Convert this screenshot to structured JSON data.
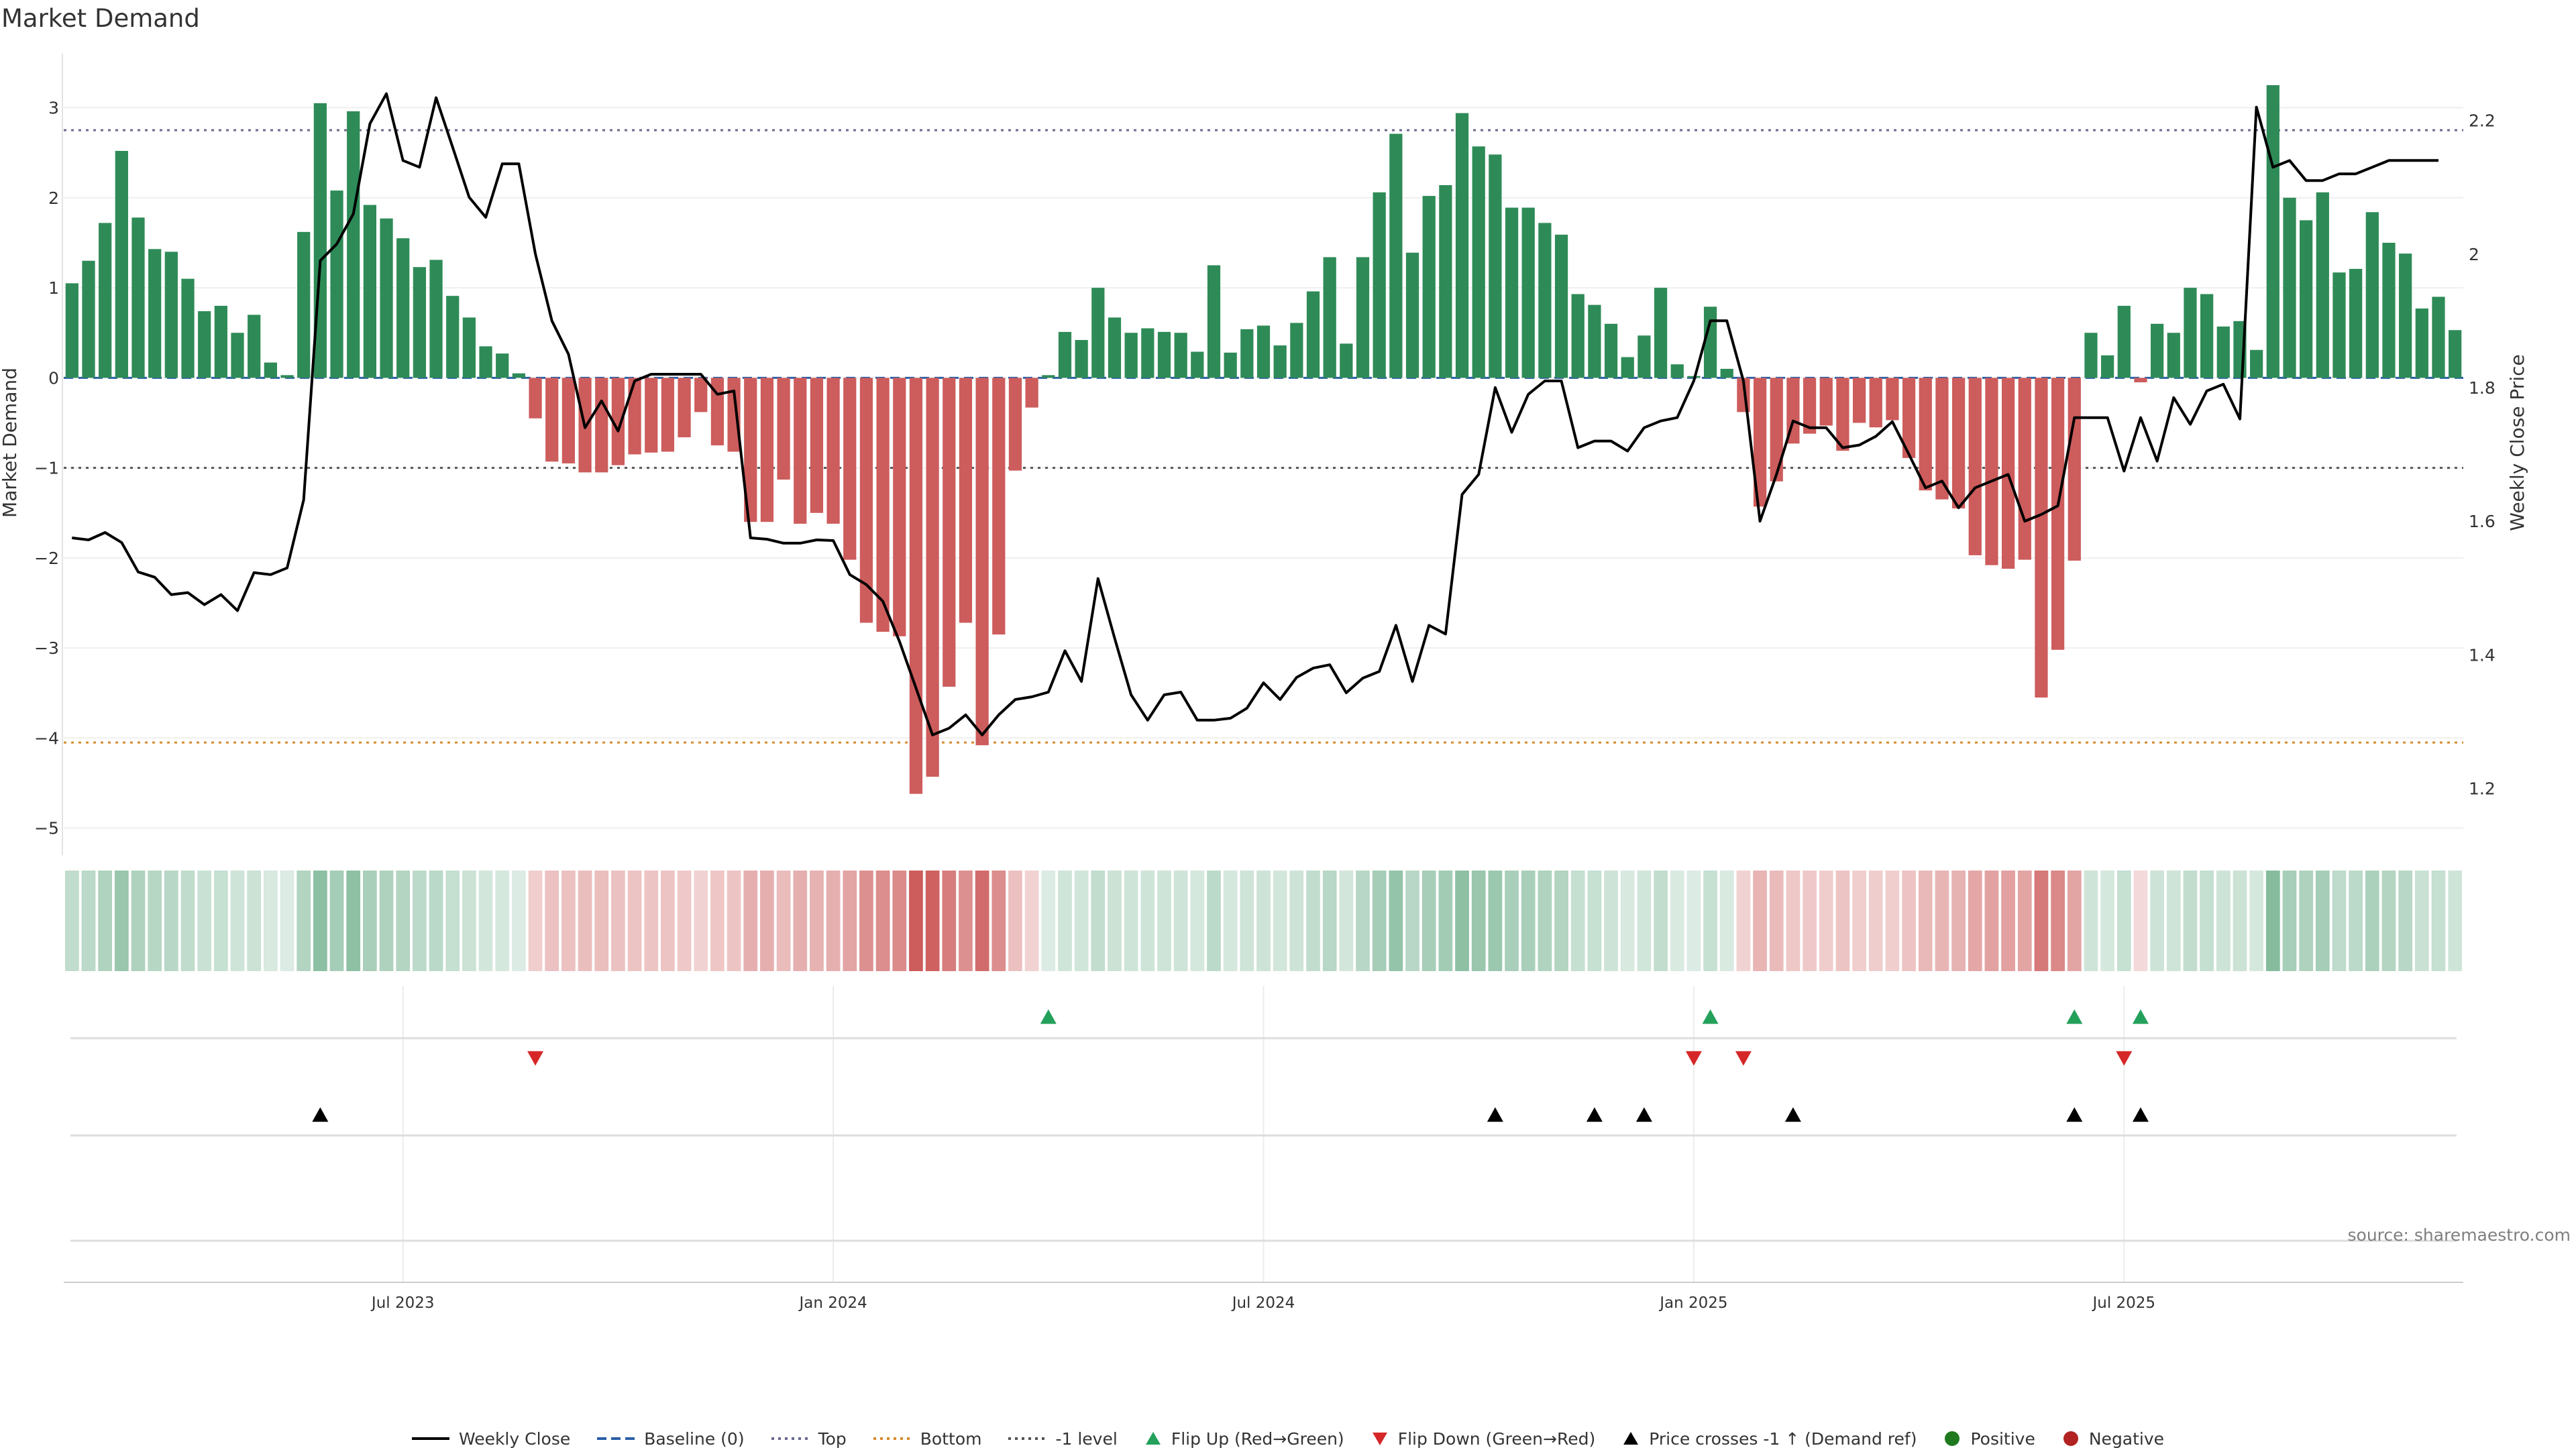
{
  "chart_data": {
    "type": "bar",
    "title": "Market Demand",
    "ylabel": "Market Demand",
    "y2label": "Weekly Close Price",
    "ylim": [
      -5.3,
      3.6
    ],
    "y2lim": [
      1.1,
      2.3
    ],
    "yticks": [
      3,
      2,
      1,
      0,
      -1,
      -2,
      -3,
      -4,
      -5
    ],
    "y2ticks": [
      2.2,
      2,
      1.8,
      1.6,
      1.4,
      1.2
    ],
    "xticks": [
      {
        "week": 20,
        "label": "Jul 2023"
      },
      {
        "week": 46,
        "label": "Jan 2024"
      },
      {
        "week": 72,
        "label": "Jul 2024"
      },
      {
        "week": 98,
        "label": "Jan 2025"
      },
      {
        "week": 124,
        "label": "Jul 2025"
      }
    ],
    "reference_lines": {
      "top": 2.75,
      "bottom": -4.05,
      "minus_one": -1,
      "baseline": 0
    },
    "demand": [
      1.05,
      1.3,
      1.72,
      2.52,
      1.78,
      1.43,
      1.4,
      1.1,
      0.74,
      0.8,
      0.5,
      0.7,
      0.17,
      0.03,
      1.62,
      3.05,
      2.08,
      2.96,
      1.92,
      1.77,
      1.55,
      1.23,
      1.31,
      0.91,
      0.67,
      0.35,
      0.27,
      0.05,
      -0.45,
      -0.93,
      -0.95,
      -1.05,
      -1.05,
      -0.97,
      -0.85,
      -0.83,
      -0.82,
      -0.66,
      -0.38,
      -0.75,
      -0.82,
      -1.6,
      -1.6,
      -1.13,
      -1.62,
      -1.5,
      -1.62,
      -2.02,
      -2.72,
      -2.82,
      -2.87,
      -4.62,
      -4.43,
      -3.43,
      -2.72,
      -4.08,
      -2.85,
      -1.03,
      -0.33,
      0.03,
      0.51,
      0.42,
      1.0,
      0.67,
      0.5,
      0.55,
      0.51,
      0.5,
      0.29,
      1.25,
      0.28,
      0.54,
      0.58,
      0.36,
      0.61,
      0.96,
      1.34,
      0.38,
      1.34,
      2.06,
      2.71,
      1.39,
      2.02,
      2.14,
      2.94,
      2.57,
      2.48,
      1.89,
      1.89,
      1.72,
      1.59,
      0.93,
      0.81,
      0.6,
      0.23,
      0.47,
      1.0,
      0.15,
      0.02,
      0.79,
      0.1,
      -0.38,
      -1.43,
      -1.15,
      -0.73,
      -0.62,
      -0.53,
      -0.81,
      -0.5,
      -0.55,
      -0.47,
      -0.89,
      -1.25,
      -1.35,
      -1.45,
      -1.97,
      -2.08,
      -2.12,
      -2.02,
      -3.55,
      -3.02,
      -2.03,
      0.5,
      0.25,
      0.8,
      -0.05,
      0.6,
      0.5,
      1.0,
      0.93,
      0.57,
      0.63,
      0.31,
      3.25,
      2.0,
      1.75,
      2.06,
      1.17,
      1.21,
      1.84,
      1.5,
      1.38,
      0.77,
      0.9,
      0.53
    ],
    "weekly_close": [
      1.575,
      1.572,
      1.583,
      1.568,
      1.524,
      1.516,
      1.49,
      1.493,
      1.475,
      1.49,
      1.466,
      1.523,
      1.52,
      1.53,
      1.632,
      1.99,
      2.015,
      2.06,
      2.195,
      2.24,
      2.14,
      2.13,
      2.234,
      2.16,
      2.085,
      2.055,
      2.135,
      2.135,
      2.0,
      1.9,
      1.85,
      1.74,
      1.78,
      1.735,
      1.81,
      1.82,
      1.82,
      1.82,
      1.82,
      1.79,
      1.795,
      1.575,
      1.573,
      1.567,
      1.567,
      1.572,
      1.571,
      1.52,
      1.505,
      1.48,
      1.42,
      1.35,
      1.28,
      1.29,
      1.31,
      1.28,
      1.31,
      1.333,
      1.337,
      1.344,
      1.406,
      1.36,
      1.514,
      1.425,
      1.34,
      1.302,
      1.34,
      1.344,
      1.302,
      1.302,
      1.305,
      1.32,
      1.358,
      1.333,
      1.366,
      1.38,
      1.385,
      1.343,
      1.365,
      1.375,
      1.444,
      1.36,
      1.444,
      1.431,
      1.64,
      1.67,
      1.8,
      1.733,
      1.79,
      1.81,
      1.81,
      1.71,
      1.72,
      1.72,
      1.705,
      1.74,
      1.75,
      1.755,
      1.81,
      1.9,
      1.9,
      1.81,
      1.6,
      1.67,
      1.75,
      1.74,
      1.74,
      1.71,
      1.714,
      1.727,
      1.749,
      1.7,
      1.65,
      1.66,
      1.62,
      1.65,
      1.66,
      1.67,
      1.6,
      1.61,
      1.623,
      1.755,
      1.755,
      1.755,
      1.675,
      1.755,
      1.69,
      1.785,
      1.745,
      1.795,
      1.805,
      1.753,
      2.22,
      2.13,
      2.14,
      2.11,
      2.11,
      2.12,
      2.12,
      2.13,
      2.14,
      2.14,
      2.14,
      2.14
    ],
    "flip_up": [
      59,
      99,
      121,
      125
    ],
    "flip_down": [
      28,
      98,
      101,
      124
    ],
    "price_cross_up": [
      15,
      86,
      92,
      95,
      104,
      121,
      125
    ],
    "source": "source: sharemaestro.com",
    "legend": [
      {
        "label": "Weekly Close",
        "symbol": "solid-line",
        "color": "#000000"
      },
      {
        "label": "Baseline (0)",
        "symbol": "dashed-line",
        "color": "#2a5fa8"
      },
      {
        "label": "Top",
        "symbol": "dotted-line",
        "color": "#6a6a90"
      },
      {
        "label": "Bottom",
        "symbol": "dotted-line",
        "color": "#d88a2c"
      },
      {
        "label": "-1 level",
        "symbol": "dotted-line",
        "color": "#555555"
      },
      {
        "label": "Flip Up (Red→Green)",
        "symbol": "triangle-up",
        "color": "#23a05a"
      },
      {
        "label": "Flip Down (Green→Red)",
        "symbol": "triangle-down",
        "color": "#d62728"
      },
      {
        "label": "Price crosses -1 ↑ (Demand ref)",
        "symbol": "triangle-up",
        "color": "#000000"
      },
      {
        "label": "Positive",
        "symbol": "circle",
        "color": "#1f7a1f"
      },
      {
        "label": "Negative",
        "symbol": "circle",
        "color": "#b22222"
      }
    ],
    "colors": {
      "positive": "#2e8b57",
      "negative": "#cd5c5c",
      "price": "#000000",
      "heat_pos": "#2e8b57",
      "heat_neg": "#cd5c5c"
    }
  }
}
